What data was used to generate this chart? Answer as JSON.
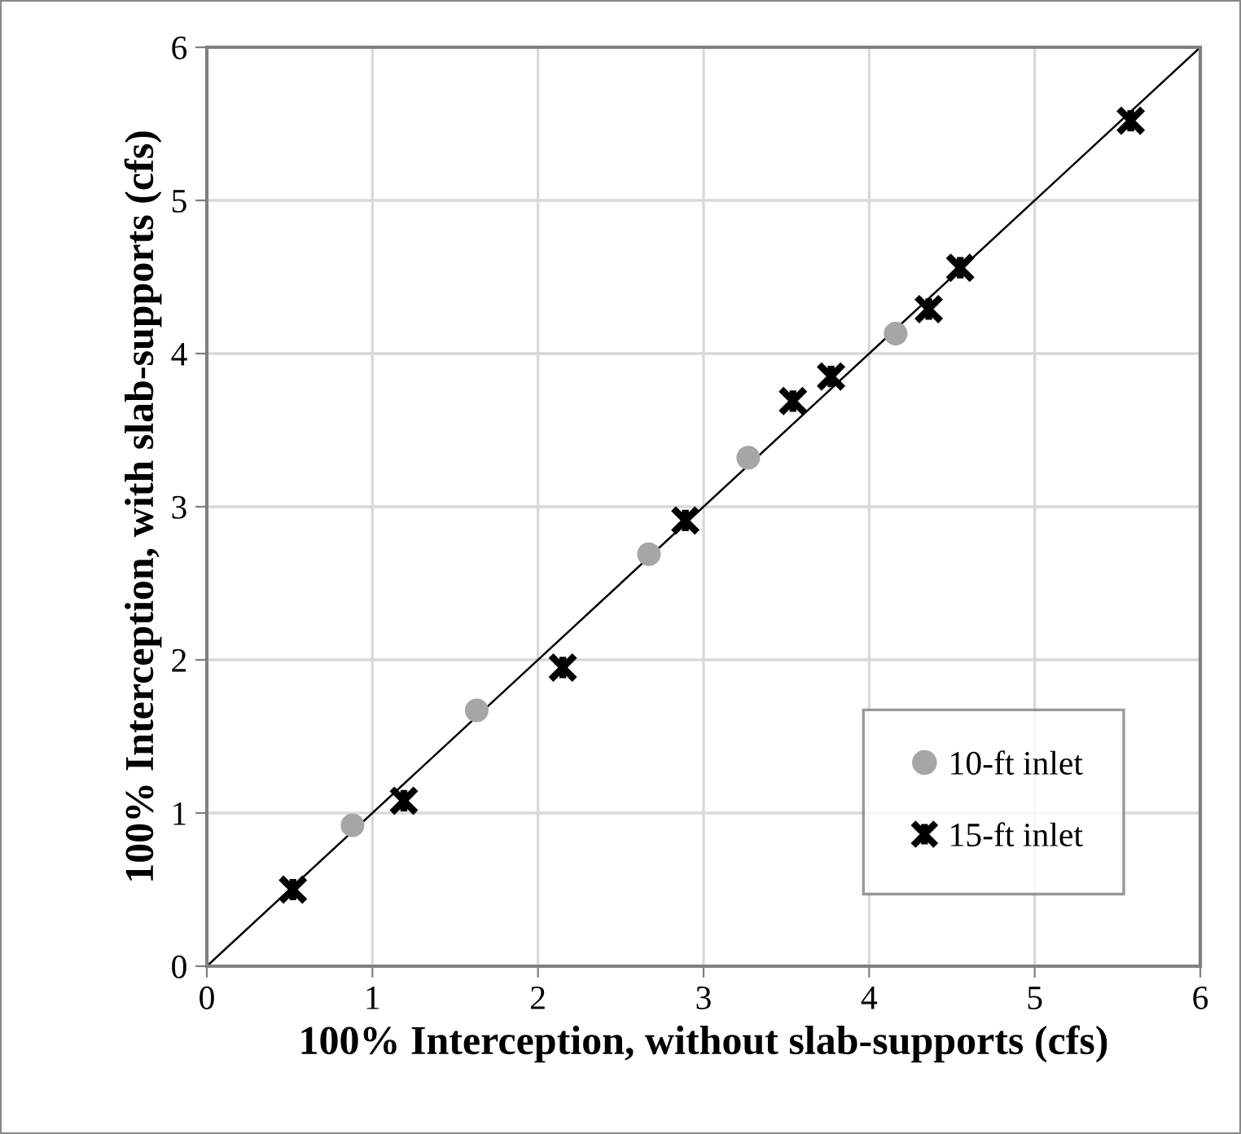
{
  "chart_data": {
    "type": "scatter",
    "xlabel": "100% Interception, without slab-supports (cfs)",
    "ylabel": "100% Interception, with slab-supports (cfs)",
    "series": [
      {
        "name": "10-ft inlet",
        "color": "#a6a6a6",
        "marker": "circle",
        "x": [
          0.88,
          1.63,
          2.67,
          3.27,
          4.16
        ],
        "values": [
          0.92,
          1.67,
          2.69,
          3.32,
          4.13
        ]
      },
      {
        "name": "15-ft inlet",
        "color": "#000000",
        "marker": "cross",
        "x": [
          0.52,
          1.19,
          2.15,
          2.89,
          3.54,
          3.77,
          4.36,
          4.55,
          5.58
        ],
        "values": [
          0.5,
          1.08,
          1.95,
          2.91,
          3.69,
          3.85,
          4.29,
          4.56,
          5.52
        ]
      },
      {
        "type": "line",
        "color": "#000000",
        "marker": "none",
        "line_style": "solid",
        "x": [
          0,
          6
        ],
        "values": [
          0,
          6
        ]
      }
    ],
    "xlim": [
      0,
      6
    ],
    "ylim": [
      0,
      6
    ],
    "xticks": [
      0,
      1,
      2,
      3,
      4,
      5,
      6
    ],
    "yticks": [
      0,
      1,
      2,
      3,
      4,
      5,
      6
    ],
    "grid": true,
    "legend": "bottom right"
  }
}
